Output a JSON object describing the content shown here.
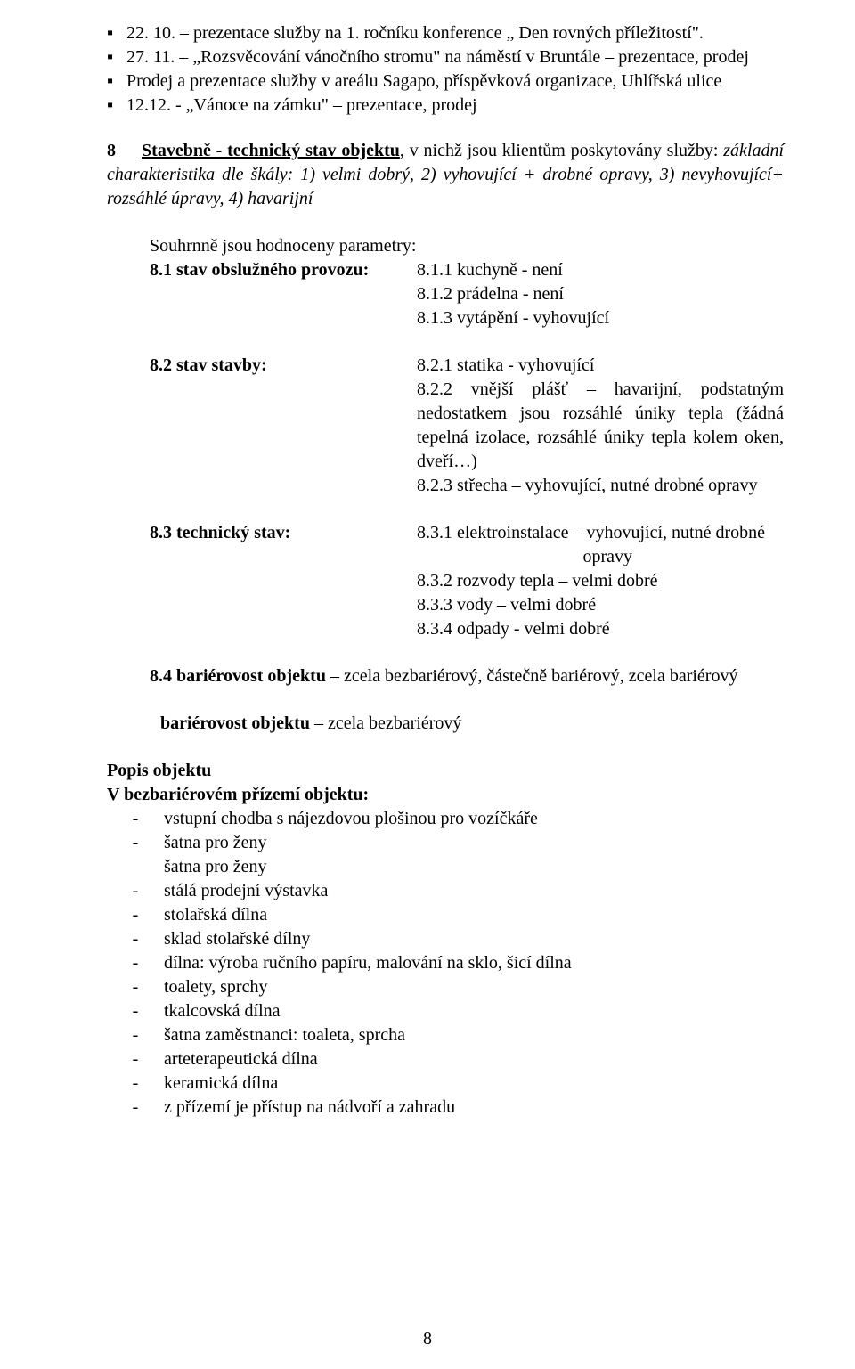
{
  "bullets_top": [
    "22. 10. – prezentace služby na 1. ročníku konference „ Den rovných příležitostí\".",
    "27. 11. – „Rozsvěcování vánočního stromu\" na náměstí v Bruntále – prezentace, prodej",
    "Prodej a prezentace služby v areálu Sagapo, příspěvková organizace, Uhlířská ulice",
    "12.12. - „Vánoce na zámku\" – prezentace, prodej"
  ],
  "section8": {
    "num": "8",
    "title": "Stavebně - technický stav objektu",
    "intro": ", v nichž jsou klientům poskytovány služby: ",
    "italic_text": "základní charakteristika dle škály: 1) velmi dobrý, 2) vyhovující + drobné opravy, 3) nevyhovující+ rozsáhlé úpravy, 4) havarijní"
  },
  "souhrn": "Souhrnně jsou hodnoceny parametry:",
  "s81": {
    "label": "8.1 stav obslužného provozu:",
    "items": [
      "8.1.1 kuchyně - není",
      "8.1.2 prádelna - není",
      "8.1.3 vytápění - vyhovující"
    ]
  },
  "s82": {
    "label": "8.2 stav stavby:",
    "items": [
      "8.2.1 statika - vyhovující",
      "8.2.2 vnější plášť – havarijní, podstatným nedostatkem jsou rozsáhlé úniky tepla (žádná tepelná izolace, rozsáhlé úniky tepla kolem oken, dveří…)",
      "8.2.3 střecha – vyhovující, nutné drobné opravy"
    ]
  },
  "s83": {
    "label": "8.3 technický stav:",
    "items_first": "8.3.1 elektroinstalace – vyhovující, nutné drobné",
    "items_first_cont": "opravy",
    "items_rest": [
      "8.3.2 rozvody tepla – velmi dobré",
      "8.3.3 vody – velmi dobré",
      "8.3.4 odpady  - velmi dobré"
    ]
  },
  "s84": {
    "label": "8.4 bariérovost objektu",
    "text": " – zcela bezbariérový, částečně bariérový, zcela bariérový"
  },
  "barier": {
    "label": "bariérovost objektu",
    "text": " – zcela bezbariérový"
  },
  "popis": {
    "head1": "Popis objektu",
    "head2": "V bezbariérovém přízemí objektu:"
  },
  "dash_items": [
    {
      "dash": true,
      "text": "vstupní chodba s nájezdovou plošinou pro vozíčkáře"
    },
    {
      "dash": true,
      "text": "šatna pro ženy"
    },
    {
      "dash": false,
      "text": "šatna pro ženy"
    },
    {
      "dash": true,
      "text": "stálá prodejní výstavka"
    },
    {
      "dash": true,
      "text": "stolařská dílna"
    },
    {
      "dash": true,
      "text": "sklad stolařské dílny"
    },
    {
      "dash": true,
      "text": "dílna: výroba ručního papíru, malování na sklo, šicí dílna"
    },
    {
      "dash": true,
      "text": "toalety, sprchy"
    },
    {
      "dash": true,
      "text": "tkalcovská dílna"
    },
    {
      "dash": true,
      "text": "šatna zaměstnanci: toaleta, sprcha"
    },
    {
      "dash": true,
      "text": "arteterapeutická dílna"
    },
    {
      "dash": true,
      "text": "keramická dílna"
    },
    {
      "dash": true,
      "text": "z přízemí je přístup na nádvoří a zahradu"
    }
  ],
  "page_num": "8"
}
